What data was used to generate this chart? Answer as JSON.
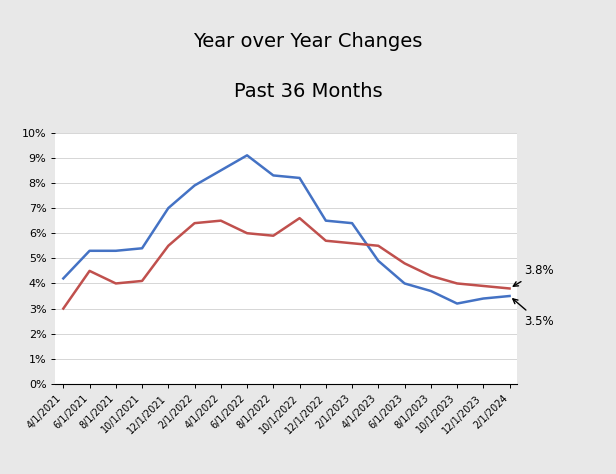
{
  "title_line1": "Year over Year Changes",
  "title_line2": "Past 36 Months",
  "x_labels": [
    "4/1/2021",
    "6/1/2021",
    "8/1/2021",
    "10/1/2021",
    "12/1/2021",
    "2/1/2022",
    "4/1/2022",
    "6/1/2022",
    "8/1/2022",
    "10/1/2022",
    "12/1/2022",
    "2/1/2023",
    "4/1/2023",
    "6/1/2023",
    "8/1/2023",
    "10/1/2023",
    "12/1/2023",
    "2/1/2024"
  ],
  "cpi": [
    4.2,
    5.3,
    5.3,
    5.4,
    7.0,
    7.9,
    8.5,
    9.1,
    8.3,
    8.2,
    6.5,
    6.4,
    4.9,
    4.0,
    3.7,
    3.2,
    3.4,
    3.5
  ],
  "core_cpi": [
    3.0,
    4.5,
    4.0,
    4.1,
    5.5,
    6.4,
    6.5,
    6.0,
    5.9,
    6.6,
    5.7,
    5.6,
    5.5,
    4.8,
    4.3,
    4.0,
    3.9,
    3.8
  ],
  "cpi_color": "#4472C4",
  "core_cpi_color": "#C0504D",
  "ylim": [
    0,
    0.1
  ],
  "yticks": [
    0,
    0.01,
    0.02,
    0.03,
    0.04,
    0.05,
    0.06,
    0.07,
    0.08,
    0.09,
    0.1
  ],
  "annotation_cpi_label": "3.5%",
  "annotation_core_label": "3.8%",
  "bg_color": "#FFFFFF",
  "grid_color": "#D0D0D0",
  "outer_bg": "#E8E8E8"
}
